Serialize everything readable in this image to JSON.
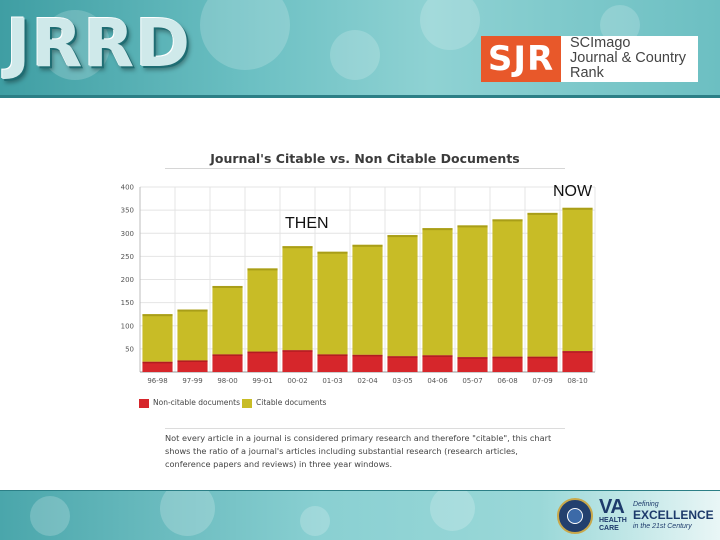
{
  "header": {
    "logo_text": "JRRD",
    "sjr_mark": "SJR",
    "sjr_line1": "SCImago",
    "sjr_line2": "Journal & Country",
    "sjr_line3": "Rank"
  },
  "annotations": {
    "then": "THEN",
    "now": "NOW"
  },
  "colors": {
    "non_citable": "#d6262b",
    "citable": "#c8bc26",
    "header_teal": "#6cc0c3"
  },
  "chart_data": {
    "type": "bar",
    "stacked": true,
    "title": "Journal's Citable vs. Non Citable Documents",
    "categories": [
      "96-98",
      "97-99",
      "98-00",
      "99-01",
      "00-02",
      "01-03",
      "02-04",
      "03-05",
      "04-06",
      "05-07",
      "06-08",
      "07-09",
      "08-10"
    ],
    "series": [
      {
        "name": "Non-citable documents",
        "values": [
          22,
          25,
          38,
          44,
          47,
          38,
          37,
          34,
          36,
          32,
          33,
          33,
          45
        ]
      },
      {
        "name": "Citable documents",
        "values": [
          103,
          110,
          148,
          180,
          225,
          222,
          238,
          262,
          275,
          285,
          297,
          311,
          310
        ]
      }
    ],
    "yticks": [
      50,
      100,
      150,
      200,
      250,
      300,
      350,
      400
    ],
    "ylim": [
      0,
      400
    ],
    "grid": true,
    "legend": "bottom-left"
  },
  "caption": {
    "line1": "Not every article in a journal is considered primary research and therefore \"citable\", this chart",
    "line2": "shows the ratio of a journal's articles including substantial research (research articles,",
    "line3": "conference papers and reviews) in three year windows."
  },
  "footer": {
    "va_big": "VA",
    "va_line1": "HEALTH",
    "va_line2": "CARE",
    "tag_line1": "Defining",
    "tag_big": "EXCELLENCE",
    "tag_line2": "in the 21st Century"
  }
}
